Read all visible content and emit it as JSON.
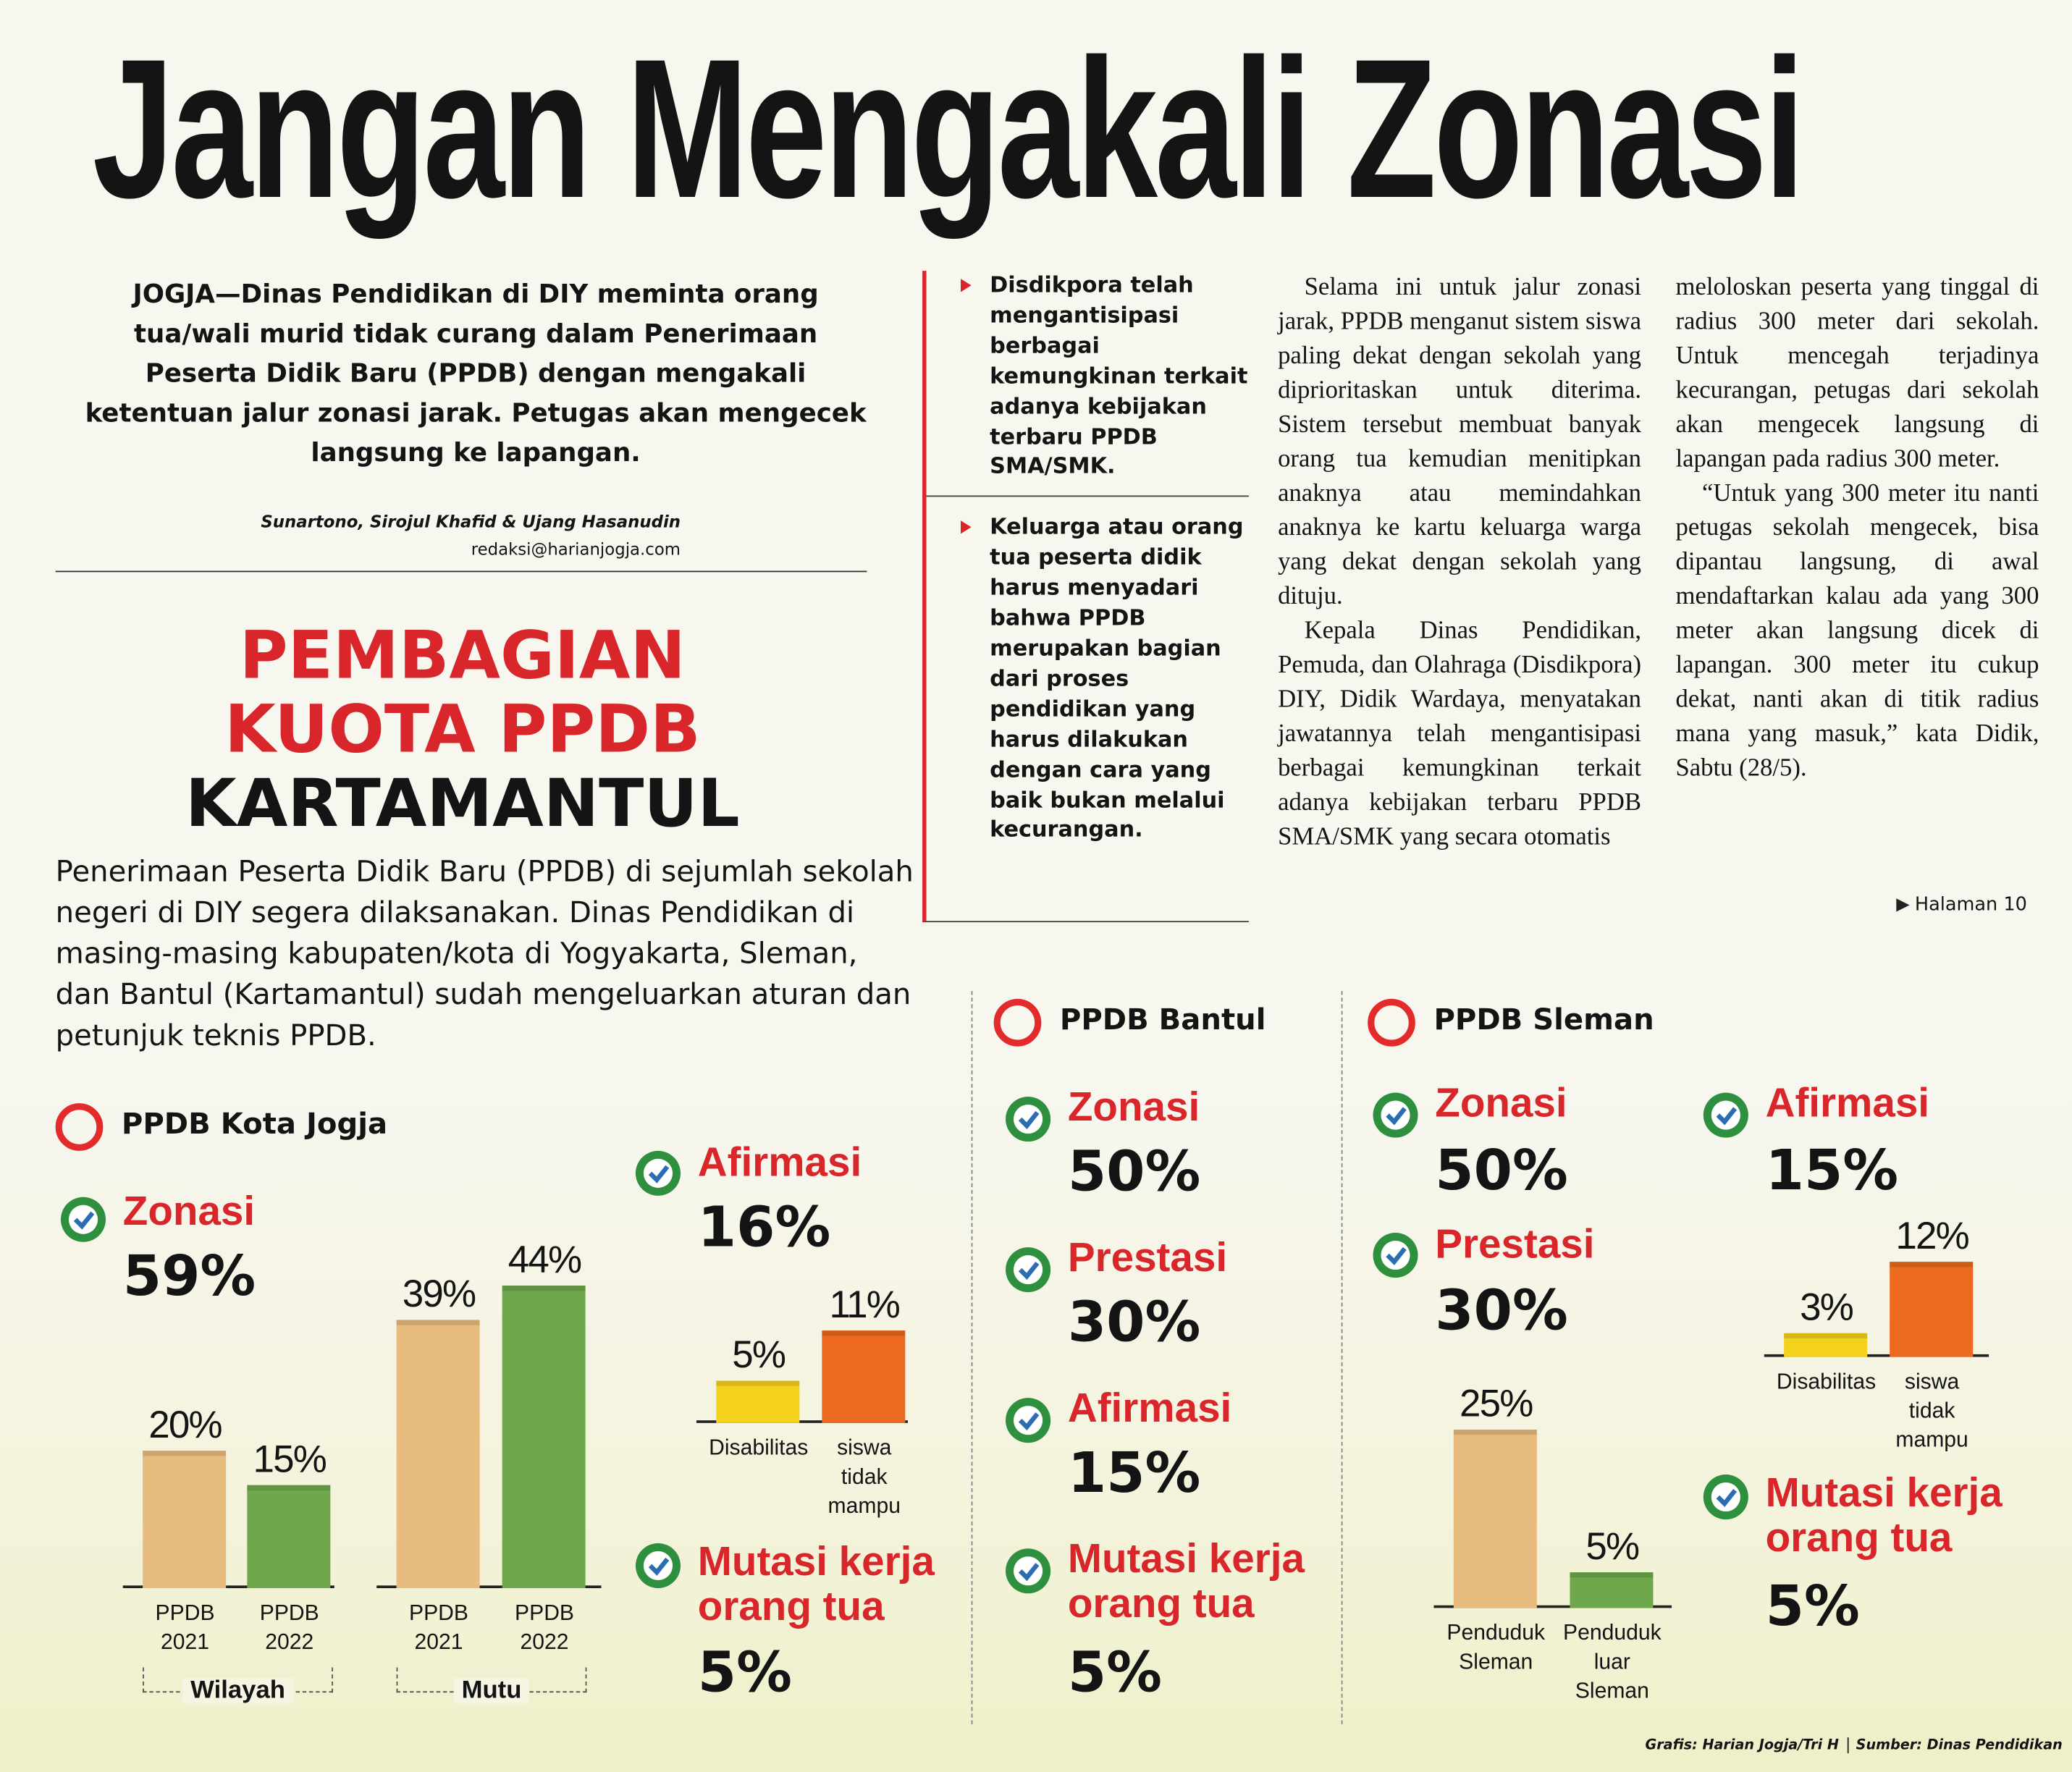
{
  "headline": "Jangan Mengakali Zonasi",
  "lede": "JOGJA—Dinas Pendidikan di DIY meminta orang tua/wali murid tidak curang dalam Penerimaan Peserta Didik Baru (PPDB) dengan mengakali ketentuan jalur zonasi jarak. Petugas akan mengecek langsung ke lapangan.",
  "byline": {
    "authors": "Sunartono, Sirojul Khafid & Ujang Hasanudin",
    "email": "redaksi@harianjogja.com"
  },
  "highlights": [
    "Disdikpora telah mengantisipasi berbagai kemungkinan terkait adanya kebijakan terbaru PPDB SMA/SMK.",
    "Keluarga atau orang tua peserta didik harus menyadari bahwa PPDB merupakan bagian dari proses pendidikan yang harus dilakukan dengan cara yang baik bukan melalui kecurangan."
  ],
  "body": {
    "columns": [
      [
        "Selama ini untuk jalur zonasi jarak, PPDB menganut sistem siswa paling dekat dengan sekolah yang diprioritaskan untuk diterima. Sistem tersebut membuat banyak orang tua kemudian menitipkan anaknya atau memindahkan anaknya ke kartu keluarga warga yang dekat dengan sekolah yang dituju.",
        "Kepala Dinas Pendidikan, Pemuda, dan Olahraga (Disdikpora) DIY, Didik Wardaya, menyatakan jawatannya telah mengantisipasi berbagai kemungkinan terkait adanya kebijakan terbaru PPDB SMA/SMK yang secara otomatis"
      ],
      [
        "meloloskan peserta yang tinggal di radius 300 meter dari sekolah. Untuk mencegah terjadinya kecurangan, petugas dari sekolah akan mengecek langsung di lapangan pada radius 300 meter.",
        "“Untuk yang 300 meter itu nanti petugas sekolah mengecek, bisa dipantau langsung, di awal mendaftarkan kalau ada yang 300 meter akan langsung dicek di lapangan. 300 meter itu cukup dekat, nanti akan di titik radius mana yang masuk,” kata Didik, Sabtu (28/5)."
      ]
    ],
    "continued": "Halaman 10"
  },
  "infographic": {
    "title": [
      "PEMBAGIAN",
      "KUOTA PPDB",
      "KARTAMANTUL"
    ],
    "intro": "Penerimaan Peserta Didik Baru (PPDB) di sejumlah sekolah negeri di DIY segera dilaksanakan. Dinas Pendidikan di masing-masing kabupaten/kota di Yogyakarta, Sleman, dan Bantul (Kartamantul) sudah mengeluarkan aturan dan petunjuk teknis PPDB.",
    "jogja": {
      "title": "PPDB Kota Jogja",
      "zonasi": {
        "label": "Zonasi",
        "quota": "59%",
        "groups": [
          {
            "name": "Wilayah",
            "bars": [
              {
                "label": "20%",
                "value": 20,
                "category": "PPDB 2021"
              },
              {
                "label": "15%",
                "value": 15,
                "category": "PPDB 2022"
              }
            ]
          },
          {
            "name": "Mutu",
            "bars": [
              {
                "label": "39%",
                "value": 39,
                "category": "PPDB 2021"
              },
              {
                "label": "44%",
                "value": 44,
                "category": "PPDB 2022"
              }
            ]
          }
        ]
      },
      "afirmasi": {
        "label": "Afirmasi",
        "quota": "16%",
        "bars": [
          {
            "label": "5%",
            "value": 5,
            "category": "Disabilitas"
          },
          {
            "label": "11%",
            "value": 11,
            "category": "siswa tidak mampu"
          }
        ]
      },
      "mutasi": {
        "label": "Mutasi kerja orang tua",
        "quota": "5%"
      }
    },
    "bantul": {
      "title": "PPDB Bantul",
      "items": [
        {
          "label": "Zonasi",
          "quota": "50%"
        },
        {
          "label": "Prestasi",
          "quota": "30%"
        },
        {
          "label": "Afirmasi",
          "quota": "15%"
        },
        {
          "label": "Mutasi kerja orang tua",
          "quota": "5%"
        }
      ]
    },
    "sleman": {
      "title": "PPDB Sleman",
      "zonasi": {
        "label": "Zonasi",
        "quota": "50%",
        "bars": [
          {
            "label": "25%",
            "value": 25,
            "category": "Penduduk Sleman"
          },
          {
            "label": "5%",
            "value": 5,
            "category": "Penduduk luar Sleman"
          }
        ]
      },
      "prestasi": {
        "label": "Prestasi",
        "quota": "30%"
      },
      "afirmasi": {
        "label": "Afirmasi",
        "quota": "15%",
        "bars": [
          {
            "label": "3%",
            "value": 3,
            "category": "Disabilitas"
          },
          {
            "label": "12%",
            "value": 12,
            "category": "siswa tidak mampu"
          }
        ]
      },
      "mutasi": {
        "label": "Mutasi kerja orang tua",
        "quota": "5%"
      }
    },
    "credit": {
      "graphic": "Grafis: Harian Jogja/Tri H",
      "source": "Sumber: Dinas Pendidikan"
    }
  }
}
